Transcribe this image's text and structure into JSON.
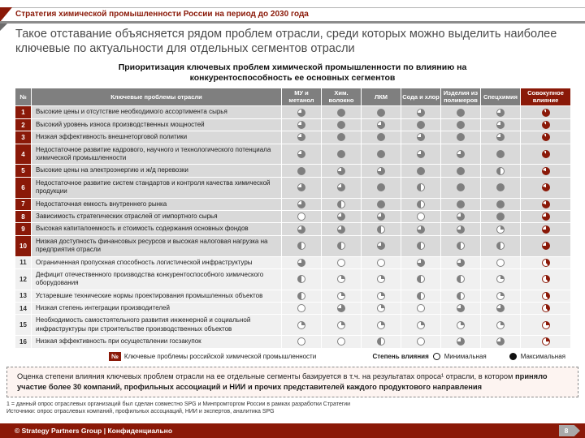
{
  "slide": {
    "kicker": "Стратегия химической промышленности России на период до 2030 года",
    "title": "Такое отставание объясняется рядом проблем отрасли, среди которых можно выделить наиболее ключевые по актуальности для отдельных сегментов отрасли"
  },
  "table": {
    "title_line1": "Приоритизация ключевых проблем химической промышленности по влиянию на",
    "title_line2": "конкурентоспособность ее основных сегментов",
    "columns": [
      "№",
      "Ключевые проблемы отрасли",
      "МУ и метанол",
      "Хим. волокно",
      "ЛКМ",
      "Сода и хлор",
      "Изделия из полимеров",
      "Спецхимия",
      "Совокупное влияние"
    ],
    "rows": [
      {
        "num": "1",
        "key": true,
        "problem": "Высокие цены и отсутствие необходимого ассортимента сырья",
        "values": [
          0.75,
          1,
          1,
          0.75,
          1,
          0.75,
          0.9
        ]
      },
      {
        "num": "2",
        "key": true,
        "problem": "Высокий уровень износа производственных мощностей",
        "values": [
          0.75,
          1,
          0.75,
          1,
          1,
          0.75,
          0.9
        ]
      },
      {
        "num": "3",
        "key": true,
        "problem": "Низкая эффективность внешнеторговой политики",
        "values": [
          0.75,
          1,
          1,
          0.75,
          1,
          0.75,
          0.9
        ]
      },
      {
        "num": "4",
        "key": true,
        "problem": "Недостаточное развитие кадрового, научного и технологического потенциала химической промышленности",
        "values": [
          0.75,
          1,
          1,
          0.75,
          0.75,
          1,
          0.9
        ]
      },
      {
        "num": "5",
        "key": true,
        "problem": "Высокие цены на электроэнергию и ж/д перевозки",
        "values": [
          1,
          0.75,
          0.75,
          1,
          1,
          0.5,
          0.8
        ]
      },
      {
        "num": "6",
        "key": true,
        "problem": "Недостаточное развитие систем стандартов и контроля качества химической продукции",
        "values": [
          0.75,
          0.75,
          1,
          0.5,
          1,
          1,
          0.8
        ]
      },
      {
        "num": "7",
        "key": true,
        "problem": "Недостаточная емкость внутреннего рынка",
        "values": [
          0.75,
          0.5,
          1,
          0.5,
          1,
          1,
          0.8
        ]
      },
      {
        "num": "8",
        "key": true,
        "problem": "Зависимость стратегических отраслей от импортного сырья",
        "values": [
          0,
          0.75,
          0.75,
          0,
          0.75,
          1,
          0.75
        ]
      },
      {
        "num": "9",
        "key": true,
        "problem": "Высокая капиталоемкость и стоимость содержания основных фондов",
        "values": [
          0.75,
          0.75,
          0.5,
          0.75,
          0.75,
          0.25,
          0.75
        ]
      },
      {
        "num": "10",
        "key": true,
        "problem": "Низкая доступность финансовых ресурсов и высокая налоговая нагрузка на предприятия отрасли",
        "values": [
          0.5,
          0.5,
          0.75,
          0.5,
          0.5,
          0.5,
          0.75
        ]
      },
      {
        "num": "11",
        "key": false,
        "problem": "Ограниченная пропускная способность логистической инфраструктуры",
        "values": [
          0.75,
          0,
          0,
          0.75,
          0.75,
          0,
          0.4
        ]
      },
      {
        "num": "12",
        "key": false,
        "problem": "Дефицит отечественного производства конкурентоспособного химического оборудования",
        "values": [
          0.5,
          0.25,
          0.25,
          0.5,
          0.5,
          0.25,
          0.4
        ]
      },
      {
        "num": "13",
        "key": false,
        "problem": "Устаревшие технические нормы проектирования промышленных объектов",
        "values": [
          0.5,
          0.25,
          0.25,
          0.5,
          0.5,
          0.25,
          0.4
        ]
      },
      {
        "num": "14",
        "key": false,
        "problem": "Низкая степень интеграции производителей",
        "values": [
          0,
          0.75,
          0.25,
          0,
          0.75,
          0.75,
          0.4
        ]
      },
      {
        "num": "15",
        "key": false,
        "problem": "Необходимость самостоятельного развития инженерной и социальной инфраструктуры при строительстве производственных объектов",
        "values": [
          0.25,
          0.25,
          0.25,
          0.25,
          0.25,
          0.25,
          0.25
        ]
      },
      {
        "num": "16",
        "key": false,
        "problem": "Низкая эффективность при осуществлении госзакупок",
        "values": [
          0,
          0,
          0.5,
          0,
          0.75,
          0.75,
          0.25
        ]
      }
    ]
  },
  "legend": {
    "badge": "№",
    "key_problems_label": "Ключевые проблемы российской химической промышленности",
    "influence_label": "Степень влияния",
    "min_label": "Минимальная",
    "max_label": "Максимальная"
  },
  "note_box": {
    "regular": "Оценка степени влияния ключевых проблем отрасли на ее отдельные сегменты базируется в т.ч. на результатах опроса¹ отрасли, в котором ",
    "bold": "приняло участие более 30 компаний, профильных ассоциаций и НИИ и прочих представителей каждого продуктового направления"
  },
  "footnotes": [
    "1 = данный опрос отраслевых организаций был сделан совместно SPG и Минпромторгом России в рамках разработки Стратегии",
    "Источники: опрос отраслевых компаний, профильных ассоциаций, НИИ и экспертов, аналитика SPG"
  ],
  "footer": {
    "copyright": "© Strategy Partners Group | Конфиденциально",
    "page": "8"
  },
  "colors": {
    "accent": "#8a1908",
    "ball_gray": "#7f7f7f",
    "header_gray": "#7f7f7f",
    "row_dark": "#d9d9d9",
    "row_light": "#f0f0f0"
  }
}
